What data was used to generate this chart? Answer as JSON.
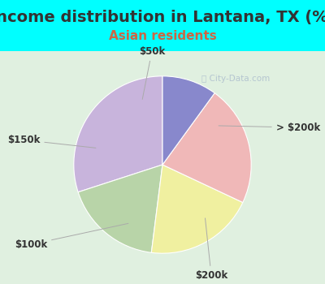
{
  "title": "Income distribution in Lantana, TX (%)",
  "subtitle": "Asian residents",
  "title_fontsize": 14,
  "subtitle_fontsize": 11,
  "title_color": "#333333",
  "subtitle_color": "#cc6644",
  "background_color": "#00FFFF",
  "slices": [
    {
      "label": "> $200k",
      "value": 30,
      "color": "#c8b4dc"
    },
    {
      "label": "$200k",
      "value": 18,
      "color": "#b8d4a8"
    },
    {
      "label": "$100k",
      "value": 20,
      "color": "#f0f0a0"
    },
    {
      "label": "$150k",
      "value": 22,
      "color": "#f0b8b8"
    },
    {
      "label": "$50k",
      "value": 10,
      "color": "#8888cc"
    }
  ],
  "startangle": 90,
  "watermark": "City-Data.com"
}
